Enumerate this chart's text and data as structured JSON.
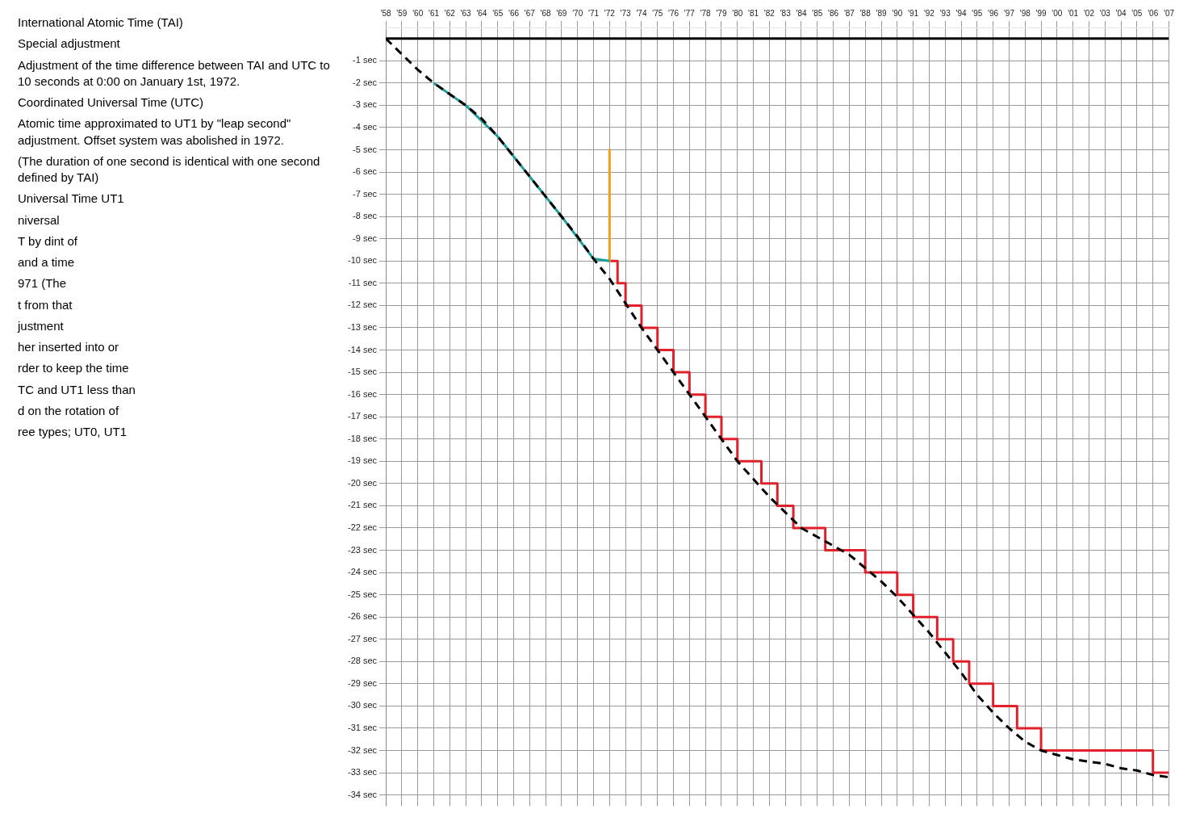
{
  "chart_data": {
    "type": "line",
    "marker": "none",
    "grid": true,
    "legend": false,
    "xlim": [
      1958,
      2007
    ],
    "ylim": [
      -34.5,
      0.5
    ],
    "xticks": [
      {
        "value": 1958,
        "label": "'58"
      },
      {
        "value": 1959,
        "label": "'59"
      },
      {
        "value": 1960,
        "label": "'60"
      },
      {
        "value": 1961,
        "label": "'61"
      },
      {
        "value": 1962,
        "label": "'62"
      },
      {
        "value": 1963,
        "label": "'63"
      },
      {
        "value": 1964,
        "label": "'64"
      },
      {
        "value": 1965,
        "label": "'65"
      },
      {
        "value": 1966,
        "label": "'66"
      },
      {
        "value": 1967,
        "label": "'67"
      },
      {
        "value": 1968,
        "label": "'68"
      },
      {
        "value": 1969,
        "label": "'69"
      },
      {
        "value": 1970,
        "label": "'70"
      },
      {
        "value": 1971,
        "label": "'71"
      },
      {
        "value": 1972,
        "label": "'72"
      },
      {
        "value": 1973,
        "label": "'73"
      },
      {
        "value": 1974,
        "label": "'74"
      },
      {
        "value": 1975,
        "label": "'75"
      },
      {
        "value": 1976,
        "label": "'76"
      },
      {
        "value": 1977,
        "label": "'77"
      },
      {
        "value": 1978,
        "label": "'78"
      },
      {
        "value": 1979,
        "label": "'79"
      },
      {
        "value": 1980,
        "label": "'80"
      },
      {
        "value": 1981,
        "label": "'81"
      },
      {
        "value": 1982,
        "label": "'82"
      },
      {
        "value": 1983,
        "label": "'83"
      },
      {
        "value": 1984,
        "label": "'84"
      },
      {
        "value": 1985,
        "label": "'85"
      },
      {
        "value": 1986,
        "label": "'86"
      },
      {
        "value": 1987,
        "label": "'87"
      },
      {
        "value": 1988,
        "label": "'88"
      },
      {
        "value": 1989,
        "label": "'89"
      },
      {
        "value": 1990,
        "label": "'90"
      },
      {
        "value": 1991,
        "label": "'91"
      },
      {
        "value": 1992,
        "label": "'92"
      },
      {
        "value": 1993,
        "label": "'93"
      },
      {
        "value": 1994,
        "label": "'94"
      },
      {
        "value": 1995,
        "label": "'95"
      },
      {
        "value": 1996,
        "label": "'96"
      },
      {
        "value": 1997,
        "label": "'97"
      },
      {
        "value": 1998,
        "label": "'98"
      },
      {
        "value": 1999,
        "label": "'99"
      },
      {
        "value": 2000,
        "label": "'00"
      },
      {
        "value": 2001,
        "label": "'01"
      },
      {
        "value": 2002,
        "label": "'02"
      },
      {
        "value": 2003,
        "label": "'03"
      },
      {
        "value": 2004,
        "label": "'04"
      },
      {
        "value": 2005,
        "label": "'05"
      },
      {
        "value": 2006,
        "label": "'06"
      },
      {
        "value": 2007,
        "label": "'07"
      }
    ],
    "yticks": [
      {
        "value": -1,
        "label": "-1 sec"
      },
      {
        "value": -2,
        "label": "-2 sec"
      },
      {
        "value": -3,
        "label": "-3 sec"
      },
      {
        "value": -4,
        "label": "-4 sec"
      },
      {
        "value": -5,
        "label": "-5 sec"
      },
      {
        "value": -6,
        "label": "-6 sec"
      },
      {
        "value": -7,
        "label": "-7 sec"
      },
      {
        "value": -8,
        "label": "-8 sec"
      },
      {
        "value": -9,
        "label": "-9 sec"
      },
      {
        "value": -10,
        "label": "-10 sec"
      },
      {
        "value": -11,
        "label": "-11 sec"
      },
      {
        "value": -12,
        "label": "-12 sec"
      },
      {
        "value": -13,
        "label": "-13 sec"
      },
      {
        "value": -14,
        "label": "-14 sec"
      },
      {
        "value": -15,
        "label": "-15 sec"
      },
      {
        "value": -16,
        "label": "-16 sec"
      },
      {
        "value": -17,
        "label": "-17 sec"
      },
      {
        "value": -18,
        "label": "-18 sec"
      },
      {
        "value": -19,
        "label": "-19 sec"
      },
      {
        "value": -20,
        "label": "-20 sec"
      },
      {
        "value": -21,
        "label": "-21 sec"
      },
      {
        "value": -22,
        "label": "-22 sec"
      },
      {
        "value": -23,
        "label": "-23 sec"
      },
      {
        "value": -24,
        "label": "-24 sec"
      },
      {
        "value": -25,
        "label": "-25 sec"
      },
      {
        "value": -26,
        "label": "-26 sec"
      },
      {
        "value": -27,
        "label": "-27 sec"
      },
      {
        "value": -28,
        "label": "-28 sec"
      },
      {
        "value": -29,
        "label": "-29 sec"
      },
      {
        "value": -30,
        "label": "-30 sec"
      },
      {
        "value": -31,
        "label": "-31 sec"
      },
      {
        "value": -32,
        "label": "-32 sec"
      },
      {
        "value": -33,
        "label": "-33 sec"
      },
      {
        "value": -34,
        "label": "-34 sec"
      }
    ],
    "series": [
      {
        "color": "#000000",
        "line_style": "solid",
        "x": [
          1958,
          2007
        ],
        "values": [
          0,
          0
        ]
      },
      {
        "color": "#000000",
        "line_style": "dashed",
        "x": [
          1958,
          1959,
          1960,
          1961,
          1962,
          1963,
          1964,
          1965,
          1966,
          1967,
          1968,
          1969,
          1970,
          1971,
          1972,
          1973,
          1974,
          1975,
          1976,
          1977,
          1978,
          1979,
          1980,
          1981,
          1982,
          1983,
          1984,
          1985,
          1986,
          1987,
          1988,
          1989,
          1990,
          1991,
          1992,
          1993,
          1994,
          1995,
          1996,
          1997,
          1998,
          1999,
          2000,
          2001,
          2002,
          2003,
          2004,
          2005,
          2006,
          2007
        ],
        "values": [
          0,
          -0.7,
          -1.4,
          -2,
          -2.5,
          -3,
          -3.6,
          -4.4,
          -5.3,
          -6.2,
          -7.1,
          -8,
          -8.9,
          -9.9,
          -10.8,
          -11.9,
          -13,
          -14,
          -15,
          -16,
          -17,
          -18,
          -19,
          -19.8,
          -20.6,
          -21.3,
          -22,
          -22.4,
          -22.8,
          -23.2,
          -23.8,
          -24.4,
          -25.1,
          -25.9,
          -26.7,
          -27.6,
          -28.5,
          -29.5,
          -30.3,
          -31,
          -31.6,
          -32,
          -32.2,
          -32.4,
          -32.5,
          -32.6,
          -32.8,
          -32.9,
          -33.1,
          -33.2
        ]
      },
      {
        "color": "#1a9e9a",
        "line_style": "solid",
        "x": [
          1961,
          1963,
          1965,
          1967,
          1969,
          1971,
          1972
        ],
        "values": [
          -2,
          -3,
          -4.4,
          -6.2,
          -8,
          -9.9,
          -10
        ]
      },
      {
        "color": "#f0a020",
        "line_style": "solid",
        "x": [
          1972,
          1972
        ],
        "values": [
          -5,
          -10
        ]
      },
      {
        "type": "step",
        "color": "#e0202a",
        "line_style": "solid",
        "x": [
          1972,
          1972.5,
          1973,
          1974,
          1975,
          1976,
          1977,
          1978,
          1979,
          1980,
          1981.5,
          1982.5,
          1983.5,
          1985.5,
          1988,
          1990,
          1991,
          1992.5,
          1993.5,
          1994.5,
          1996,
          1997.5,
          1999,
          2006,
          2007
        ],
        "values": [
          -10,
          -11,
          -12,
          -13,
          -14,
          -15,
          -16,
          -17,
          -18,
          -19,
          -20,
          -21,
          -22,
          -23,
          -24,
          -25,
          -26,
          -27,
          -28,
          -29,
          -30,
          -31,
          -32,
          -33,
          -33
        ]
      }
    ],
    "annotations": [
      "International Atomic Time (TAI)",
      "Special adjustment",
      "Adjustment of the time difference between TAI and UTC to 10 seconds at 0:00 on January 1st, 1972.",
      "Coordinated Universal Time (UTC)",
      "Atomic time approximated to UT1 by \"leap second\" adjustment. Offset system was abolished in 1972.",
      "(The duration of one second is identical with one second defined by TAI)",
      "Universal Time UT1",
      "niversal",
      "T by dint of",
      "and a time",
      "971 (The",
      "t from that",
      "justment",
      "her inserted into or",
      "rder to keep the time",
      "TC and UT1 less than",
      "d on the rotation of",
      "ree types; UT0, UT1"
    ]
  }
}
